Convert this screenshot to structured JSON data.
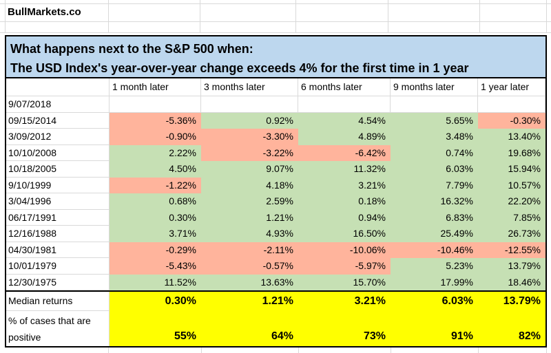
{
  "brand": "BullMarkets.co",
  "title": {
    "line1": "What happens next to the S&P 500 when:",
    "line2": "The USD Index's year-over-year change exceeds 4% for the first time in 1 year"
  },
  "colors": {
    "positive_fill": "#c6e0b4",
    "negative_fill": "#ffb49c",
    "summary_highlight": "#ffff00",
    "title_background": "#bdd7ee"
  },
  "table": {
    "column_headers": [
      "1 month later",
      "3 months later",
      "6 months later",
      "9 months later",
      "1 year later"
    ],
    "rows": [
      {
        "date": "9/07/2018",
        "values": [
          "",
          "",
          "",
          "",
          ""
        ]
      },
      {
        "date": "09/15/2014",
        "values": [
          "-5.36%",
          "0.92%",
          "4.54%",
          "5.65%",
          "-0.30%"
        ]
      },
      {
        "date": "3/09/2012",
        "values": [
          "-0.90%",
          "-3.30%",
          "4.89%",
          "3.48%",
          "13.40%"
        ]
      },
      {
        "date": "10/10/2008",
        "values": [
          "2.22%",
          "-3.22%",
          "-6.42%",
          "0.74%",
          "19.68%"
        ]
      },
      {
        "date": "10/18/2005",
        "values": [
          "4.50%",
          "9.07%",
          "11.32%",
          "6.03%",
          "15.94%"
        ]
      },
      {
        "date": "9/10/1999",
        "values": [
          "-1.22%",
          "4.18%",
          "3.21%",
          "7.79%",
          "10.57%"
        ]
      },
      {
        "date": "3/04/1996",
        "values": [
          "0.68%",
          "2.59%",
          "0.18%",
          "16.32%",
          "22.20%"
        ]
      },
      {
        "date": "06/17/1991",
        "values": [
          "0.30%",
          "1.21%",
          "0.94%",
          "6.83%",
          "7.85%"
        ]
      },
      {
        "date": "12/16/1988",
        "values": [
          "3.71%",
          "4.93%",
          "16.50%",
          "25.49%",
          "26.73%"
        ]
      },
      {
        "date": "04/30/1981",
        "values": [
          "-0.29%",
          "-2.11%",
          "-10.06%",
          "-10.46%",
          "-12.55%"
        ]
      },
      {
        "date": "10/01/1979",
        "values": [
          "-5.43%",
          "-0.57%",
          "-5.97%",
          "5.23%",
          "13.79%"
        ]
      },
      {
        "date": "12/30/1975",
        "values": [
          "11.52%",
          "13.63%",
          "15.70%",
          "17.99%",
          "18.46%"
        ]
      }
    ],
    "summary": {
      "median_label": "Median returns",
      "median_values": [
        "0.30%",
        "1.21%",
        "3.21%",
        "6.03%",
        "13.79%"
      ],
      "percent_positive_label": "% of cases that are positive",
      "percent_positive_values": [
        "55%",
        "64%",
        "73%",
        "91%",
        "82%"
      ]
    }
  }
}
